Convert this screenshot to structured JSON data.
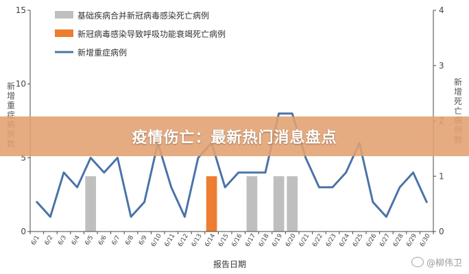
{
  "banner": {
    "title": "疫情伤亡：最新热门消息盘点"
  },
  "watermark": {
    "text": "@柳伟卫"
  },
  "chart_data": {
    "type": "bar+line",
    "categories": [
      "6/1",
      "6/2",
      "6/3",
      "6/4",
      "6/5",
      "6/6",
      "6/7",
      "6/8",
      "6/9",
      "6/10",
      "6/11",
      "6/12",
      "6/13",
      "6/14",
      "6/15",
      "6/16",
      "6/17",
      "6/18",
      "6/19",
      "6/20",
      "6/21",
      "6/22",
      "6/23",
      "6/24",
      "6/25",
      "6/26",
      "6/27",
      "6/28",
      "6/29",
      "6/30"
    ],
    "left_axis": {
      "label": "新增重症病例数",
      "ylim": [
        0,
        15
      ],
      "ticks": [
        0,
        5,
        10,
        15
      ]
    },
    "right_axis": {
      "label": "新增死亡病例数",
      "ylim": [
        0,
        4
      ],
      "ticks": [
        0,
        1,
        2,
        3,
        4
      ]
    },
    "xlabel": "报告日期",
    "legend_position": "top-left",
    "series": [
      {
        "name": "基础疾病合并新冠病毒感染死亡病例",
        "type": "bar",
        "axis": "right",
        "color": "#bfbfbf",
        "values": [
          0,
          0,
          0,
          0,
          1,
          0,
          0,
          0,
          0,
          0,
          0,
          0,
          0,
          0,
          0,
          0,
          1,
          0,
          1,
          1,
          0,
          0,
          0,
          0,
          0,
          0,
          0,
          0,
          0,
          0
        ]
      },
      {
        "name": "新冠病毒感染导致呼吸功能衰竭死亡病例",
        "type": "bar",
        "axis": "right",
        "color": "#ed7d31",
        "values": [
          0,
          0,
          0,
          0,
          0,
          0,
          0,
          0,
          0,
          0,
          0,
          0,
          0,
          1,
          0,
          0,
          0,
          0,
          0,
          0,
          0,
          0,
          0,
          0,
          0,
          0,
          0,
          0,
          0,
          0
        ]
      },
      {
        "name": "新增重症病例",
        "type": "line",
        "axis": "left",
        "color": "#4a73a8",
        "values": [
          2,
          1,
          4,
          3,
          5,
          4,
          5,
          1,
          2,
          6,
          3,
          1,
          5,
          6,
          3,
          4,
          4,
          4,
          8,
          8,
          5,
          3,
          3,
          4,
          6,
          2,
          1,
          3,
          4,
          2
        ]
      }
    ]
  }
}
